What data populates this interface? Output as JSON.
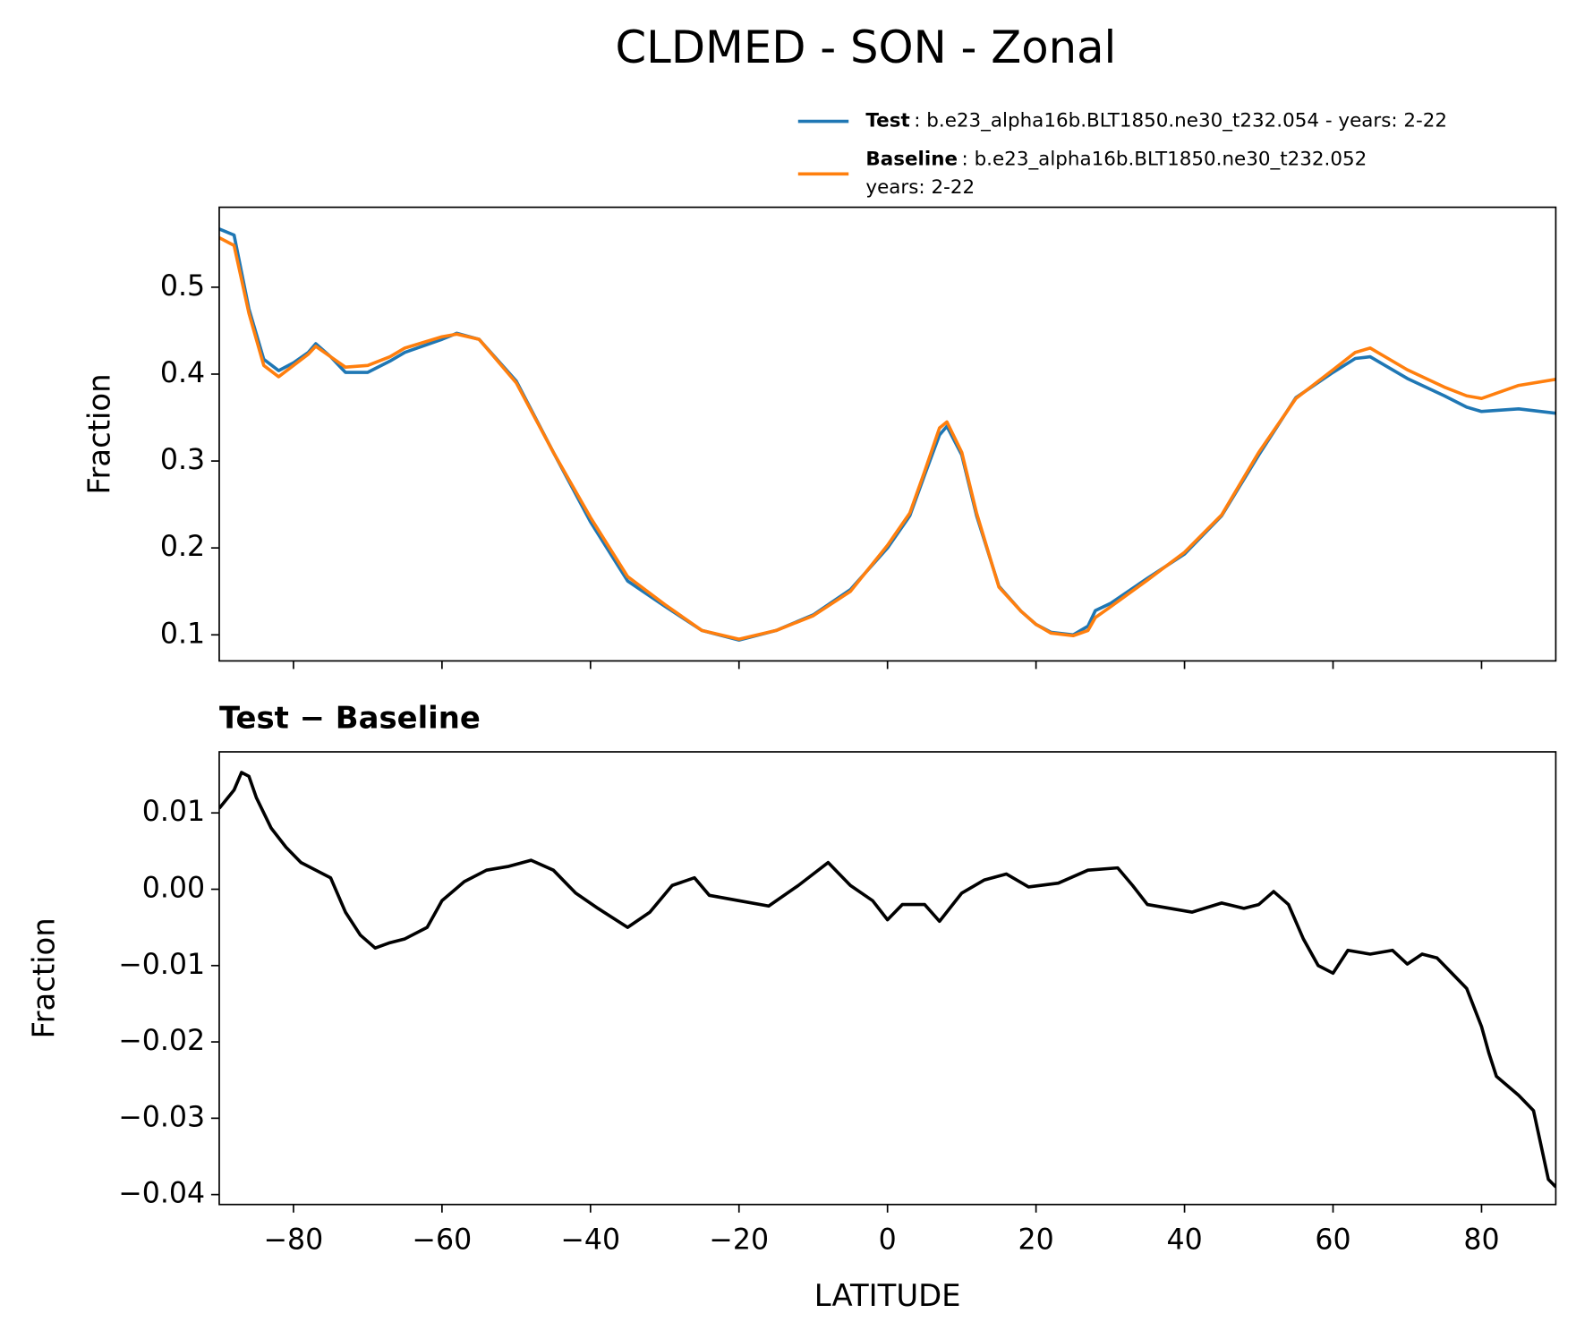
{
  "chart_data": [
    {
      "type": "line",
      "title": "CLDMED - SON - Zonal",
      "ylabel": "Fraction",
      "x": [
        -90,
        -88,
        -86,
        -84,
        -82,
        -80,
        -78,
        -77,
        -75,
        -73,
        -70,
        -67,
        -65,
        -60,
        -58,
        -55,
        -50,
        -45,
        -40,
        -35,
        -30,
        -25,
        -20,
        -15,
        -10,
        -5,
        0,
        3,
        5,
        7,
        8,
        10,
        12,
        15,
        18,
        20,
        22,
        25,
        27,
        28,
        30,
        35,
        40,
        45,
        50,
        55,
        60,
        63,
        65,
        70,
        75,
        78,
        80,
        85,
        90
      ],
      "xlim": [
        -90,
        90
      ],
      "xticks": [
        -80,
        -60,
        -40,
        -20,
        0,
        20,
        40,
        60,
        80
      ],
      "ylim": [
        0.07,
        0.592
      ],
      "yticks": [
        0.1,
        0.2,
        0.3,
        0.4,
        0.5
      ],
      "series": [
        {
          "name": "Test",
          "description": [
            ": b.e23_alpha16b.BLT1850.ne30_t232.054 - years: 2-22"
          ],
          "color": "#1f77b4",
          "values": [
            0.567,
            0.56,
            0.475,
            0.417,
            0.404,
            0.413,
            0.425,
            0.435,
            0.42,
            0.402,
            0.402,
            0.415,
            0.425,
            0.44,
            0.447,
            0.44,
            0.392,
            0.31,
            0.23,
            0.162,
            0.133,
            0.105,
            0.094,
            0.105,
            0.123,
            0.152,
            0.2,
            0.237,
            0.284,
            0.33,
            0.34,
            0.307,
            0.237,
            0.156,
            0.127,
            0.112,
            0.103,
            0.1,
            0.11,
            0.128,
            0.136,
            0.165,
            0.193,
            0.237,
            0.307,
            0.373,
            0.402,
            0.418,
            0.42,
            0.395,
            0.375,
            0.362,
            0.357,
            0.36,
            0.355
          ]
        },
        {
          "name": "Baseline",
          "description": [
            ": b.e23_alpha16b.BLT1850.ne30_t232.052",
            "years: 2-22"
          ],
          "color": "#ff7f0e",
          "values": [
            0.557,
            0.548,
            0.47,
            0.41,
            0.397,
            0.41,
            0.423,
            0.432,
            0.42,
            0.408,
            0.41,
            0.42,
            0.43,
            0.443,
            0.446,
            0.44,
            0.39,
            0.31,
            0.235,
            0.167,
            0.135,
            0.105,
            0.095,
            0.105,
            0.122,
            0.15,
            0.203,
            0.24,
            0.288,
            0.338,
            0.345,
            0.31,
            0.24,
            0.155,
            0.127,
            0.112,
            0.102,
            0.099,
            0.105,
            0.12,
            0.132,
            0.163,
            0.195,
            0.238,
            0.31,
            0.372,
            0.405,
            0.425,
            0.43,
            0.405,
            0.385,
            0.375,
            0.372,
            0.387,
            0.394
          ]
        }
      ]
    },
    {
      "type": "line",
      "title": "Test − Baseline",
      "xlabel": "LATITUDE",
      "ylabel": "Fraction",
      "x": [
        -90,
        -88,
        -87,
        -86,
        -85,
        -83,
        -81,
        -79,
        -77,
        -75,
        -73,
        -71,
        -69,
        -67,
        -65,
        -62,
        -60,
        -57,
        -54,
        -51,
        -48,
        -45,
        -42,
        -39,
        -35,
        -32,
        -29,
        -26,
        -24,
        -20,
        -16,
        -12,
        -8,
        -5,
        -2,
        0,
        2,
        5,
        7,
        10,
        13,
        16,
        19,
        23,
        27,
        31,
        33,
        35,
        38,
        41,
        45,
        48,
        50,
        52,
        54,
        56,
        58,
        60,
        62,
        65,
        68,
        70,
        72,
        74,
        76,
        78,
        79,
        80,
        81,
        82,
        85,
        87,
        89,
        90
      ],
      "xlim": [
        -90,
        90
      ],
      "xticks": [
        {
          "value": -80,
          "label": "−80"
        },
        {
          "value": -60,
          "label": "−60"
        },
        {
          "value": -40,
          "label": "−40"
        },
        {
          "value": -20,
          "label": "−20"
        },
        0,
        20,
        40,
        60,
        80
      ],
      "ylim": [
        -0.0413,
        0.018
      ],
      "yticks": [
        {
          "value": 0.01,
          "label": "0.01"
        },
        {
          "value": 0,
          "label": "0.00"
        },
        {
          "value": -0.01,
          "label": "−0.01"
        },
        {
          "value": -0.02,
          "label": "−0.02"
        },
        {
          "value": -0.03,
          "label": "−0.03"
        },
        {
          "value": -0.04,
          "label": "−0.04"
        }
      ],
      "series": [
        {
          "color": "#000000",
          "values": [
            0.0106,
            0.013,
            0.0153,
            0.0148,
            0.012,
            0.008,
            0.0055,
            0.0035,
            0.0025,
            0.0015,
            -0.003,
            -0.006,
            -0.0077,
            -0.007,
            -0.0065,
            -0.005,
            -0.0015,
            0.001,
            0.0025,
            0.003,
            0.0038,
            0.0025,
            -0.0005,
            -0.0025,
            -0.005,
            -0.003,
            0.0005,
            0.0015,
            -0.0008,
            -0.0015,
            -0.0022,
            0.0005,
            0.0035,
            0.0005,
            -0.0015,
            -0.004,
            -0.002,
            -0.002,
            -0.0042,
            -0.0005,
            0.0012,
            0.002,
            0.0003,
            0.0008,
            0.0025,
            0.0028,
            0.0005,
            -0.002,
            -0.0025,
            -0.003,
            -0.0018,
            -0.0025,
            -0.002,
            -0.0003,
            -0.002,
            -0.0065,
            -0.01,
            -0.011,
            -0.008,
            -0.0085,
            -0.008,
            -0.0098,
            -0.0085,
            -0.009,
            -0.011,
            -0.013,
            -0.0155,
            -0.018,
            -0.0215,
            -0.0245,
            -0.027,
            -0.029,
            -0.038,
            -0.039
          ]
        }
      ]
    }
  ]
}
